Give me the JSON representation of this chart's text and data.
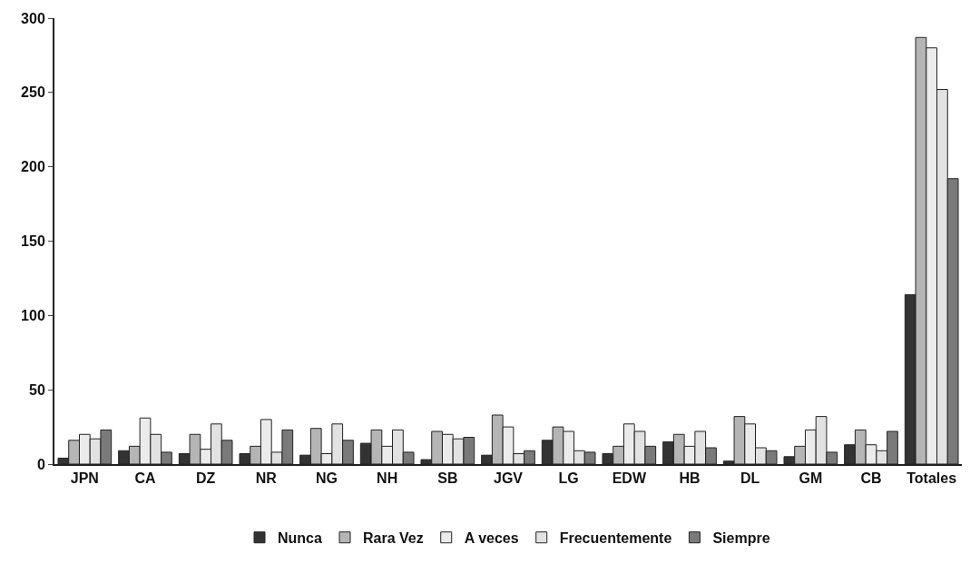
{
  "chart_data": {
    "type": "bar",
    "categories": [
      "JPN",
      "CA",
      "DZ",
      "NR",
      "NG",
      "NH",
      "SB",
      "JGV",
      "LG",
      "EDW",
      "HB",
      "DL",
      "GM",
      "CB",
      "Totales"
    ],
    "series": [
      {
        "name": "Nunca",
        "color": "#333333",
        "values": [
          4,
          9,
          7,
          7,
          6,
          14,
          3,
          6,
          16,
          7,
          15,
          2,
          5,
          13,
          114
        ]
      },
      {
        "name": "Rara Vez",
        "color": "#b5b5b5",
        "values": [
          16,
          12,
          20,
          12,
          24,
          23,
          22,
          33,
          25,
          12,
          20,
          32,
          12,
          23,
          287
        ]
      },
      {
        "name": "A veces",
        "color": "#ebebeb",
        "values": [
          20,
          31,
          10,
          30,
          7,
          12,
          20,
          25,
          22,
          27,
          12,
          27,
          23,
          13,
          280
        ]
      },
      {
        "name": "Frecuentemente",
        "color": "#e2e2e2",
        "values": [
          17,
          20,
          27,
          8,
          27,
          23,
          17,
          7,
          9,
          22,
          22,
          11,
          32,
          9,
          252
        ]
      },
      {
        "name": "Siempre",
        "color": "#7a7a7a",
        "values": [
          23,
          8,
          16,
          23,
          16,
          8,
          18,
          9,
          8,
          12,
          11,
          9,
          8,
          22,
          192
        ]
      }
    ],
    "ylim": [
      0,
      300
    ],
    "yticks": [
      0,
      50,
      100,
      150,
      200,
      250,
      300
    ],
    "grid": false,
    "legend": "bottom"
  }
}
